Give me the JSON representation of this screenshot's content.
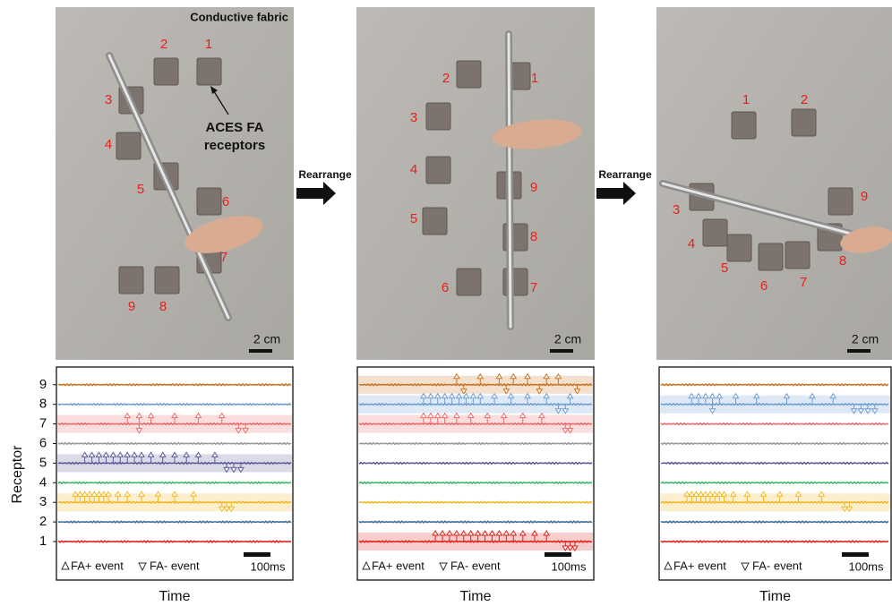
{
  "panels": [
    {
      "photo": {
        "title": "Conductive fabric",
        "annotation": [
          "ACES FA",
          "receptors"
        ],
        "receptor_labels": [
          "1",
          "2",
          "3",
          "4",
          "5",
          "6",
          "7",
          "8",
          "9"
        ],
        "scale_label": "2 cm"
      },
      "plot": {
        "y_label": "Receptor",
        "yticks": [
          "1",
          "2",
          "3",
          "4",
          "5",
          "6",
          "7",
          "8",
          "9"
        ],
        "legend": [
          "FA+ event",
          "FA- event"
        ],
        "scale_label": "100ms",
        "x_label": "Time"
      }
    },
    {
      "photo": {
        "receptor_labels": [
          "1",
          "2",
          "3",
          "4",
          "5",
          "6",
          "7",
          "8",
          "9"
        ],
        "scale_label": "2 cm"
      },
      "plot": {
        "legend": [
          "FA+ event",
          "FA- event"
        ],
        "scale_label": "100ms",
        "x_label": "Time"
      }
    },
    {
      "photo": {
        "receptor_labels": [
          "1",
          "2",
          "3",
          "4",
          "5",
          "6",
          "7",
          "8",
          "9"
        ],
        "scale_label": "2 cm"
      },
      "plot": {
        "legend": [
          "FA+ event",
          "FA- event"
        ],
        "scale_label": "100ms",
        "x_label": "Time"
      }
    }
  ],
  "transitions": [
    "Rearrange",
    "Rearrange"
  ],
  "trace_colors": [
    "#e0201c",
    "#3a6c98",
    "#f2b822",
    "#3cb46a",
    "#5b5996",
    "#9a9a9a",
    "#ea6b6b",
    "#6d9cd2",
    "#c9731e"
  ]
}
